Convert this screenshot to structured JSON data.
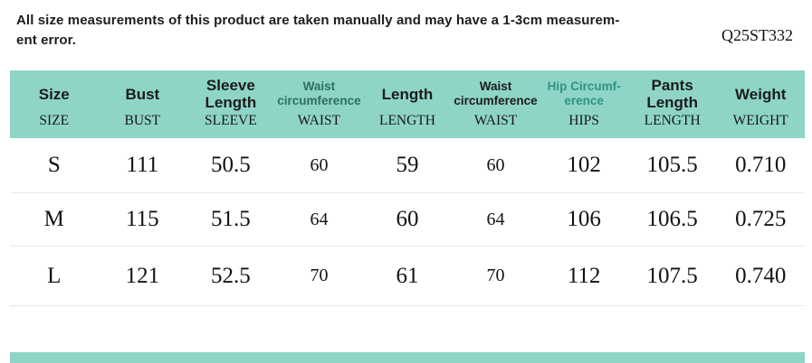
{
  "note": {
    "line1": "All size measurements of this product are taken manually and may have a 1-3cm measurem-",
    "line2": "ent error."
  },
  "product_code": "Q25ST332",
  "colors": {
    "band": "#8ed5c7",
    "dark_text": "#1c1c1c",
    "waist_header_teal": "#2f6e63",
    "hip_header_teal": "#2f9384",
    "separator": "#e9e9e9"
  },
  "table": {
    "columns": [
      {
        "key": "size",
        "lines": [
          "Size"
        ],
        "sublabel": "SIZE",
        "variant": "bold"
      },
      {
        "key": "bust",
        "lines": [
          "Bust"
        ],
        "sublabel": "BUST",
        "variant": "bold"
      },
      {
        "key": "sleeve-length",
        "lines": [
          "Sleeve",
          "Length"
        ],
        "sublabel": "SLEEVE",
        "variant": "bold"
      },
      {
        "key": "waist-circumference-1",
        "lines": [
          "Waist",
          "circumference"
        ],
        "sublabel": "WAIST",
        "variant": "small-teal"
      },
      {
        "key": "length",
        "lines": [
          "Length"
        ],
        "sublabel": "LENGTH",
        "variant": "bold"
      },
      {
        "key": "waist-circumference-2",
        "lines": [
          "Waist",
          "circumference"
        ],
        "sublabel": "WAIST",
        "variant": "small-dark"
      },
      {
        "key": "hip-circumference",
        "lines": [
          "Hip Circumf-",
          "erence"
        ],
        "sublabel": "HIPS",
        "variant": "small-teal-bright"
      },
      {
        "key": "pants-length",
        "lines": [
          "Pants",
          "Length"
        ],
        "sublabel": "LENGTH",
        "variant": "bold"
      },
      {
        "key": "weight",
        "lines": [
          "Weight"
        ],
        "sublabel": "WEIGHT",
        "variant": "bold"
      }
    ],
    "small_value_columns": [
      3,
      5
    ],
    "rows": [
      [
        "S",
        "111",
        "50.5",
        "60",
        "59",
        "60",
        "102",
        "105.5",
        "0.710"
      ],
      [
        "M",
        "115",
        "51.5",
        "64",
        "60",
        "64",
        "106",
        "106.5",
        "0.725"
      ],
      [
        "L",
        "121",
        "52.5",
        "70",
        "61",
        "70",
        "112",
        "107.5",
        "0.740"
      ]
    ]
  },
  "chart_data": {
    "type": "table",
    "title": "Product size chart",
    "note": "All size measurements of this product are taken manually and may have a 1-3cm measurem-ent error.",
    "product_code": "Q25ST332",
    "columns": [
      "Size",
      "Bust",
      "Sleeve Length",
      "Waist circumference",
      "Length",
      "Waist circumference",
      "Hip Circumf-erence",
      "Pants Length",
      "Weight"
    ],
    "sub_columns": [
      "SIZE",
      "BUST",
      "SLEEVE",
      "WAIST",
      "LENGTH",
      "WAIST",
      "HIPS",
      "LENGTH",
      "WEIGHT"
    ],
    "rows": [
      {
        "size": "S",
        "bust": "111",
        "sleeve": "50.5",
        "waist1": "60",
        "length": "59",
        "waist2": "60",
        "hips": "102",
        "pants_length": "105.5",
        "weight": "0.710"
      },
      {
        "size": "M",
        "bust": "115",
        "sleeve": "51.5",
        "waist1": "64",
        "length": "60",
        "waist2": "64",
        "hips": "106",
        "pants_length": "106.5",
        "weight": "0.725"
      },
      {
        "size": "L",
        "bust": "121",
        "sleeve": "52.5",
        "waist1": "70",
        "length": "61",
        "waist2": "70",
        "hips": "112",
        "pants_length": "107.5",
        "weight": "0.740"
      }
    ]
  }
}
